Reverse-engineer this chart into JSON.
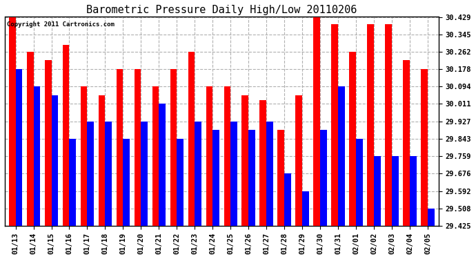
{
  "title": "Barometric Pressure Daily High/Low 20110206",
  "copyright": "Copyright 2011 Cartronics.com",
  "dates": [
    "01/13",
    "01/14",
    "01/15",
    "01/16",
    "01/17",
    "01/18",
    "01/19",
    "01/20",
    "01/21",
    "01/22",
    "01/23",
    "01/24",
    "01/25",
    "01/26",
    "01/27",
    "01/28",
    "01/29",
    "01/30",
    "01/31",
    "02/01",
    "02/02",
    "02/03",
    "02/04",
    "02/05"
  ],
  "highs": [
    30.429,
    30.262,
    30.22,
    30.295,
    30.094,
    30.052,
    30.178,
    30.178,
    30.094,
    30.178,
    30.262,
    30.094,
    30.094,
    30.052,
    30.03,
    29.885,
    30.052,
    30.429,
    30.395,
    30.262,
    30.395,
    30.395,
    30.22,
    30.178
  ],
  "lows": [
    30.178,
    30.094,
    30.052,
    29.843,
    29.927,
    29.927,
    29.843,
    29.927,
    30.011,
    29.843,
    29.927,
    29.885,
    29.927,
    29.885,
    29.927,
    29.676,
    29.592,
    29.885,
    30.094,
    29.843,
    29.759,
    29.759,
    29.759,
    29.508
  ],
  "ylim_min": 29.425,
  "ylim_max": 30.429,
  "yticks": [
    30.429,
    30.345,
    30.262,
    30.178,
    30.094,
    30.011,
    29.927,
    29.843,
    29.759,
    29.676,
    29.592,
    29.508,
    29.425
  ],
  "bar_width": 0.38,
  "high_color": "#ff0000",
  "low_color": "#0000ff",
  "bg_color": "#ffffff",
  "grid_color": "#b0b0b0",
  "title_fontsize": 11,
  "tick_fontsize": 7.5,
  "copyright_fontsize": 6.5
}
